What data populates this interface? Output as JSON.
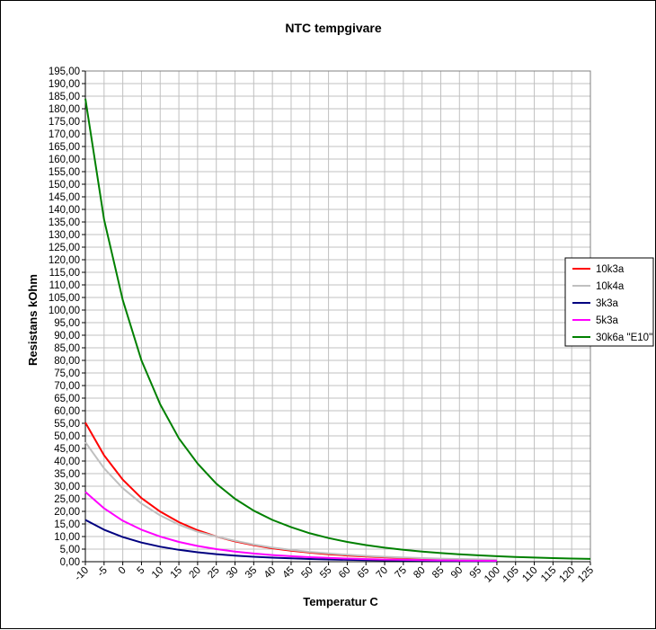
{
  "chart_data": {
    "type": "line",
    "title": "NTC tempgivare",
    "xlabel": "Temperatur C",
    "ylabel": "Resistans kOhm",
    "xlim": [
      -10,
      125
    ],
    "ylim": [
      0,
      195
    ],
    "x_ticks": [
      "-10",
      "-5",
      "0",
      "5",
      "10",
      "15",
      "20",
      "25",
      "30",
      "35",
      "40",
      "45",
      "50",
      "55",
      "60",
      "65",
      "70",
      "75",
      "80",
      "85",
      "90",
      "95",
      "100",
      "105",
      "110",
      "115",
      "120",
      "125"
    ],
    "y_ticks": [
      "0,00",
      "5,00",
      "10,00",
      "15,00",
      "20,00",
      "25,00",
      "30,00",
      "35,00",
      "40,00",
      "45,00",
      "50,00",
      "55,00",
      "60,00",
      "65,00",
      "70,00",
      "75,00",
      "80,00",
      "85,00",
      "90,00",
      "95,00",
      "100,00",
      "105,00",
      "110,00",
      "115,00",
      "120,00",
      "125,00",
      "130,00",
      "135,00",
      "140,00",
      "145,00",
      "150,00",
      "155,00",
      "160,00",
      "165,00",
      "170,00",
      "175,00",
      "180,00",
      "185,00",
      "190,00",
      "195,00"
    ],
    "grid": true,
    "legend_position": "right",
    "x": [
      -10,
      -5,
      0,
      5,
      10,
      15,
      20,
      25,
      30,
      35,
      40,
      45,
      50,
      55,
      60,
      65,
      70,
      75,
      80,
      85,
      90,
      95,
      100,
      105,
      110,
      115,
      120,
      125
    ],
    "series": [
      {
        "name": "10k3a",
        "color": "#ff0000",
        "values": [
          55.3,
          42.3,
          32.6,
          25.3,
          19.9,
          15.7,
          12.5,
          10.0,
          8.06,
          6.53,
          5.32,
          4.36,
          3.6,
          2.98,
          2.48,
          2.07,
          1.74,
          1.47,
          1.25,
          1.06,
          0.91,
          0.78,
          0.67,
          null,
          null,
          null,
          null,
          null
        ]
      },
      {
        "name": "10k4a",
        "color": "#c0c0c0",
        "values": [
          47.5,
          37.1,
          29.2,
          23.1,
          18.4,
          14.7,
          11.9,
          10.0,
          8.32,
          6.83,
          5.64,
          4.68,
          3.9,
          3.27,
          2.75,
          2.32,
          1.97,
          1.68,
          1.43,
          1.23,
          1.06,
          0.92,
          0.8,
          null,
          null,
          null,
          null,
          null
        ]
      },
      {
        "name": "3k3a",
        "color": "#000080",
        "values": [
          16.6,
          12.7,
          9.79,
          7.6,
          5.95,
          4.7,
          3.74,
          3.0,
          2.42,
          1.96,
          1.6,
          1.31,
          1.08,
          0.89,
          0.74,
          0.62,
          0.52,
          0.44,
          0.38,
          0.32,
          0.27,
          0.23,
          0.2,
          null,
          null,
          null,
          null,
          null
        ]
      },
      {
        "name": "5k3a",
        "color": "#ff00ff",
        "values": [
          27.7,
          21.2,
          16.3,
          12.7,
          9.95,
          7.86,
          6.25,
          5.0,
          4.03,
          3.26,
          2.66,
          2.18,
          1.8,
          1.49,
          1.24,
          1.04,
          0.87,
          0.74,
          0.62,
          0.53,
          0.45,
          0.39,
          0.34,
          null,
          null,
          null,
          null,
          null
        ]
      },
      {
        "name": "30k6a \"E10\"",
        "color": "#008000",
        "values": [
          184,
          136,
          104,
          80.0,
          62.5,
          49.0,
          39.0,
          31.0,
          25.0,
          20.3,
          16.6,
          13.7,
          11.3,
          9.4,
          7.86,
          6.6,
          5.57,
          4.72,
          4.02,
          3.43,
          2.94,
          2.53,
          2.18,
          1.89,
          1.64,
          1.43,
          1.25,
          1.1
        ]
      }
    ]
  }
}
